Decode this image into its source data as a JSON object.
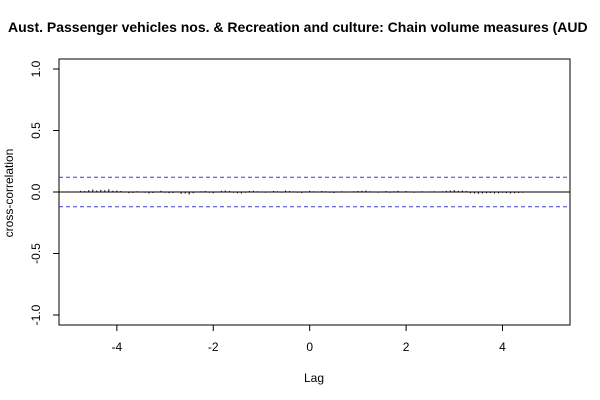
{
  "chart_data": {
    "type": "bar",
    "title": "Aust. Passenger vehicles nos. & Recreation and culture: Chain volume measures (AUD",
    "xlabel": "Lag",
    "ylabel": "cross-correlation",
    "xlim": [
      -5.2,
      5.4
    ],
    "ylim": [
      -1.0,
      1.0
    ],
    "x_ticks": [
      -4,
      -2,
      0,
      2,
      4
    ],
    "y_ticks": [
      -1.0,
      -0.5,
      0.0,
      0.5,
      1.0
    ],
    "x_tick_labels": [
      "-4",
      "-2",
      "0",
      "2",
      "4"
    ],
    "y_tick_labels": [
      "-1.0",
      "-0.5",
      "0.0",
      "0.5",
      "1.0"
    ],
    "confidence_limit": 0.12,
    "colors": {
      "bars": "#000000",
      "confidence": "#3d3dd9",
      "zero_line": "#000000",
      "frame": "#000000"
    },
    "lags": [
      -5.0,
      -4.917,
      -4.833,
      -4.75,
      -4.667,
      -4.583,
      -4.5,
      -4.417,
      -4.333,
      -4.25,
      -4.167,
      -4.083,
      -4.0,
      -3.917,
      -3.833,
      -3.75,
      -3.667,
      -3.583,
      -3.5,
      -3.417,
      -3.333,
      -3.25,
      -3.167,
      -3.083,
      -3.0,
      -2.917,
      -2.833,
      -2.75,
      -2.667,
      -2.583,
      -2.5,
      -2.417,
      -2.333,
      -2.25,
      -2.167,
      -2.083,
      -2.0,
      -1.917,
      -1.833,
      -1.75,
      -1.667,
      -1.583,
      -1.5,
      -1.417,
      -1.333,
      -1.25,
      -1.167,
      -1.083,
      -1.0,
      -0.917,
      -0.833,
      -0.75,
      -0.667,
      -0.583,
      -0.5,
      -0.417,
      -0.333,
      -0.25,
      -0.167,
      -0.083,
      0.0,
      0.083,
      0.167,
      0.25,
      0.333,
      0.417,
      0.5,
      0.583,
      0.667,
      0.75,
      0.833,
      0.917,
      1.0,
      1.083,
      1.167,
      1.25,
      1.333,
      1.417,
      1.5,
      1.583,
      1.667,
      1.75,
      1.833,
      1.917,
      2.0,
      2.083,
      2.167,
      2.25,
      2.333,
      2.417,
      2.5,
      2.583,
      2.667,
      2.75,
      2.833,
      2.917,
      3.0,
      3.083,
      3.167,
      3.25,
      3.333,
      3.417,
      3.5,
      3.583,
      3.667,
      3.75,
      3.833,
      3.917,
      4.0,
      4.083,
      4.167,
      4.25,
      4.333,
      4.417,
      4.5,
      4.583,
      4.667,
      4.75,
      4.833,
      4.917,
      5.0
    ],
    "values": [
      0.005,
      0.003,
      -0.004,
      0.01,
      0.008,
      0.015,
      0.02,
      0.012,
      0.018,
      0.014,
      0.022,
      0.01,
      0.012,
      0.008,
      -0.005,
      -0.01,
      -0.008,
      0.006,
      -0.004,
      -0.006,
      -0.012,
      -0.008,
      0.005,
      0.01,
      -0.006,
      -0.01,
      -0.008,
      0.005,
      -0.015,
      -0.012,
      -0.02,
      -0.01,
      -0.004,
      0.006,
      0.008,
      -0.006,
      -0.01,
      0.004,
      0.01,
      0.012,
      0.008,
      -0.006,
      -0.01,
      -0.012,
      -0.006,
      0.008,
      0.01,
      0.006,
      -0.004,
      -0.006,
      0.004,
      0.008,
      0.006,
      -0.006,
      0.012,
      0.008,
      0.005,
      -0.006,
      -0.008,
      0.005,
      0.01,
      0.006,
      -0.004,
      0.008,
      0.006,
      -0.006,
      -0.008,
      0.004,
      0.006,
      -0.005,
      0.003,
      0.006,
      0.008,
      0.01,
      0.012,
      0.006,
      -0.004,
      -0.006,
      0.005,
      0.008,
      -0.006,
      0.006,
      0.01,
      -0.004,
      0.008,
      0.005,
      -0.006,
      0.004,
      0.006,
      -0.004,
      0.005,
      0.006,
      0.004,
      0.006,
      0.01,
      0.012,
      0.015,
      0.01,
      0.012,
      0.008,
      -0.01,
      -0.012,
      -0.014,
      -0.012,
      -0.01,
      -0.008,
      -0.012,
      -0.01,
      -0.006,
      -0.008,
      -0.012,
      -0.01,
      -0.008,
      -0.006,
      -0.004,
      0.005,
      0.004,
      -0.004,
      0.003,
      0.005,
      0.004
    ]
  }
}
